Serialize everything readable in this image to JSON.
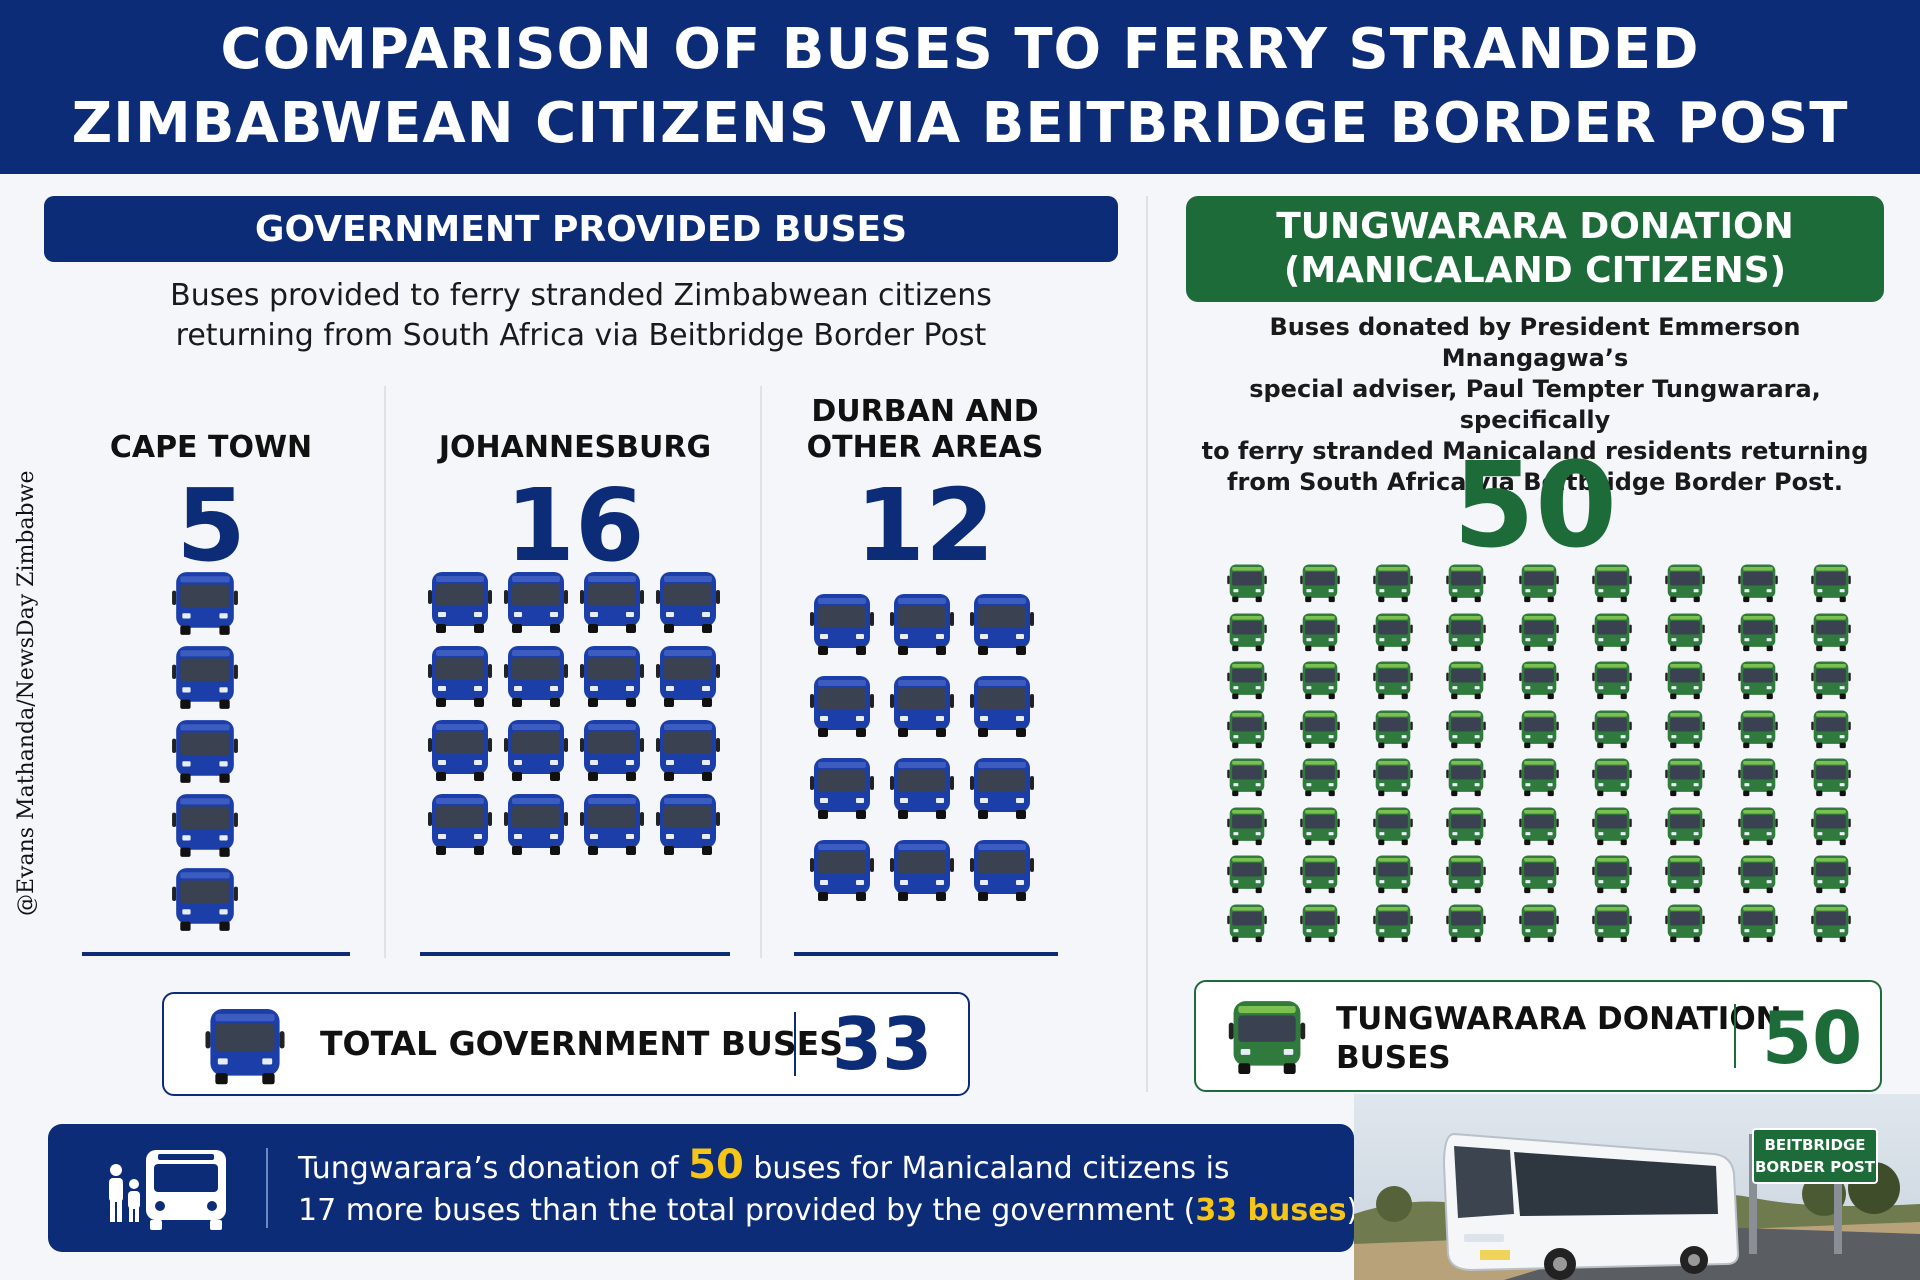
{
  "header": {
    "title_line1": "COMPARISON OF BUSES TO FERRY STRANDED",
    "title_line2": "ZIMBABWEAN CITIZENS VIA BEITBRIDGE BORDER POST"
  },
  "government": {
    "heading": "GOVERNMENT PROVIDED BUSES",
    "subtitle_line1": "Buses provided to ferry stranded Zimbabwean citizens",
    "subtitle_line2": "returning from South Africa via Beitbridge Border Post",
    "cities": [
      {
        "name_line1": "CAPE TOWN",
        "name_line2": "",
        "count": "5",
        "buses": 5
      },
      {
        "name_line1": "JOHANNESBURG",
        "name_line2": "",
        "count": "16",
        "buses": 16
      },
      {
        "name_line1": "DURBAN AND",
        "name_line2": "OTHER AREAS",
        "count": "12",
        "buses": 12
      }
    ],
    "total_label": "TOTAL GOVERNMENT BUSES",
    "total_value": "33",
    "color": "#0d2c78"
  },
  "tungwarara": {
    "heading_line1": "TUNGWARARA DONATION",
    "heading_line2": "(MANICALAND CITIZENS)",
    "description_lines": [
      "Buses donated by President Emmerson Mnangagwa’s",
      "special adviser, Paul Tempter Tungwarara, specifically",
      "to ferry stranded Manicaland residents returning",
      "from South Africa via Beitbridge Border Post."
    ],
    "count": "50",
    "buses": 50,
    "box_label_line1": "TUNGWARARA DONATION",
    "box_label_line2": "BUSES",
    "box_value": "50",
    "color": "#1e6b3a"
  },
  "banner": {
    "text_part1": "Tungwarara’s donation of ",
    "highlight_50": "50",
    "text_part2": " buses for Manicaland citizens is",
    "text_part3": "17 more buses than the total provided by the government (",
    "highlight_33": "33 buses",
    "text_part4": ")."
  },
  "sign": {
    "line1": "BEITBRIDGE",
    "line2": "BORDER POST"
  },
  "credit": "@Evans Mathanda/NewsDay Zimbabwe",
  "icons": {
    "bus": "bus-icon",
    "family": "family-icon"
  }
}
